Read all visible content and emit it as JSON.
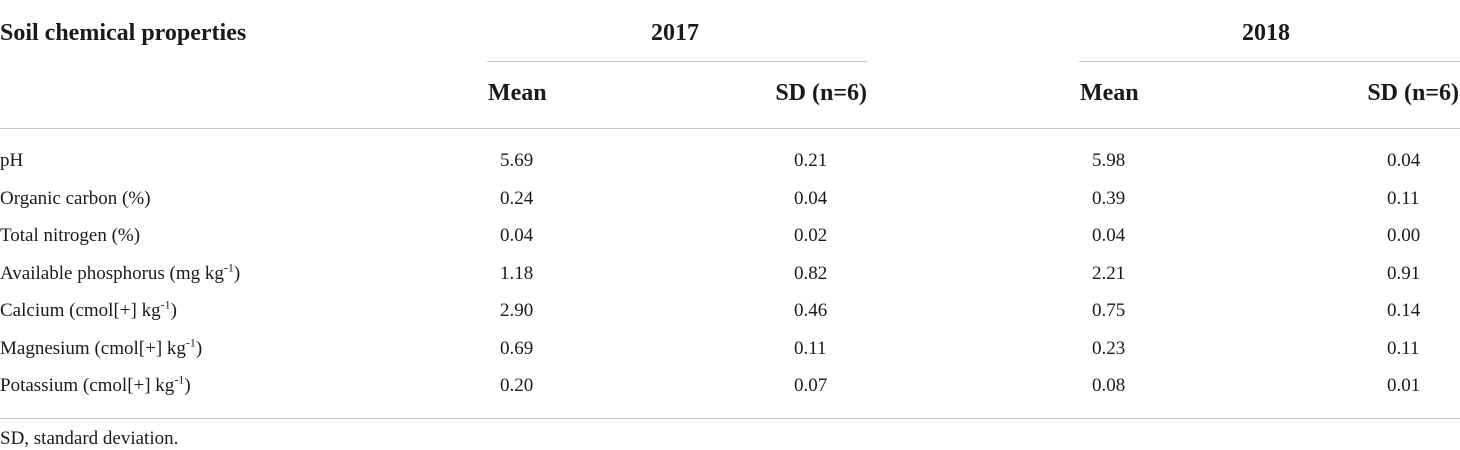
{
  "table": {
    "row_header": "Soil chemical properties",
    "groups": [
      {
        "year": "2017",
        "mean_label": "Mean",
        "sd_label": "SD (n=6)"
      },
      {
        "year": "2018",
        "mean_label": "Mean",
        "sd_label": "SD (n=6)"
      }
    ],
    "rows": [
      {
        "name": "pH",
        "sup": "",
        "m2017": "5.69",
        "sd2017": "0.21",
        "m2018": "5.98",
        "sd2018": "0.04"
      },
      {
        "name": "Organic carbon (%)",
        "sup": "",
        "m2017": "0.24",
        "sd2017": "0.04",
        "m2018": "0.39",
        "sd2018": "0.11"
      },
      {
        "name": "Total nitrogen (%)",
        "sup": "",
        "m2017": "0.04",
        "sd2017": "0.02",
        "m2018": "0.04",
        "sd2018": "0.00"
      },
      {
        "name": "Available phosphorus (mg kg",
        "sup": "-1",
        "close": ")",
        "m2017": "1.18",
        "sd2017": "0.82",
        "m2018": "2.21",
        "sd2018": "0.91"
      },
      {
        "name": "Calcium (cmol[+] kg",
        "sup": "-1",
        "close": ")",
        "m2017": "2.90",
        "sd2017": "0.46",
        "m2018": "0.75",
        "sd2018": "0.14"
      },
      {
        "name": "Magnesium (cmol[+] kg",
        "sup": "-1",
        "close": ")",
        "m2017": "0.69",
        "sd2017": "0.11",
        "m2018": "0.23",
        "sd2018": "0.11"
      },
      {
        "name": "Potassium (cmol[+] kg",
        "sup": "-1",
        "close": ")",
        "m2017": "0.20",
        "sd2017": "0.07",
        "m2018": "0.08",
        "sd2018": "0.01"
      }
    ],
    "footnote": "SD, standard deviation."
  }
}
